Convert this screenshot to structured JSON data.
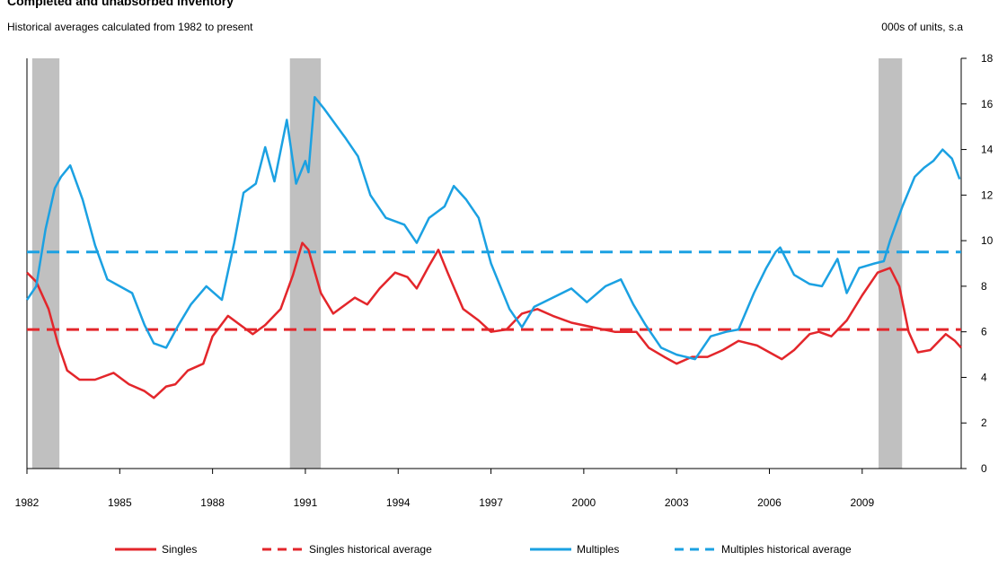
{
  "chart_data": {
    "type": "line",
    "title": "Completed and unabsorbed inventory",
    "subtitle": "Historical averages calculated from 1982 to present",
    "y_label": "000s of units, s.a",
    "xlim": [
      1982,
      2012.2
    ],
    "xticks": [
      1982,
      1985,
      1988,
      1991,
      1994,
      1997,
      2000,
      2003,
      2006,
      2009
    ],
    "ylim": [
      0,
      18
    ],
    "yticks": [
      0,
      2,
      4,
      6,
      8,
      10,
      12,
      14,
      16,
      18
    ],
    "recession_color": "#c0c0c0",
    "recessions": [
      [
        1982.17,
        1983.05
      ],
      [
        1990.5,
        1991.5
      ],
      [
        2009.53,
        2010.29
      ]
    ],
    "series": [
      {
        "name": "Singles",
        "color": "#e3262b",
        "x": [
          1982.0,
          1982.3,
          1982.7,
          1983.0,
          1983.3,
          1983.7,
          1984.2,
          1984.8,
          1985.3,
          1985.8,
          1986.1,
          1986.5,
          1986.8,
          1987.2,
          1987.7,
          1988.0,
          1988.5,
          1988.9,
          1989.3,
          1989.7,
          1990.2,
          1990.6,
          1990.9,
          1991.1,
          1991.5,
          1991.9,
          1992.3,
          1992.6,
          1993.0,
          1993.4,
          1993.9,
          1994.3,
          1994.6,
          1995.0,
          1995.3,
          1995.6,
          1996.1,
          1996.6,
          1997.0,
          1997.5,
          1998.0,
          1998.5,
          1999.0,
          1999.6,
          2000.3,
          2001.0,
          2001.7,
          2002.1,
          2002.6,
          2003.0,
          2003.5,
          2004.0,
          2004.5,
          2005.0,
          2005.6,
          2006.0,
          2006.4,
          2006.8,
          2007.3,
          2007.6,
          2008.0,
          2008.5,
          2009.0,
          2009.5,
          2009.9,
          2010.2,
          2010.5,
          2010.8,
          2011.2,
          2011.7,
          2012.0,
          2012.2
        ],
        "values": [
          8.6,
          8.2,
          7.0,
          5.5,
          4.3,
          3.9,
          3.9,
          4.2,
          3.7,
          3.4,
          3.1,
          3.6,
          3.7,
          4.3,
          4.6,
          5.8,
          6.7,
          6.3,
          5.9,
          6.3,
          7.0,
          8.5,
          9.9,
          9.6,
          7.7,
          6.8,
          7.2,
          7.5,
          7.2,
          7.9,
          8.6,
          8.4,
          7.9,
          8.9,
          9.6,
          8.6,
          7.0,
          6.5,
          6.0,
          6.1,
          6.8,
          7.0,
          6.7,
          6.4,
          6.2,
          6.0,
          6.0,
          5.3,
          4.9,
          4.6,
          4.9,
          4.9,
          5.2,
          5.6,
          5.4,
          5.1,
          4.8,
          5.2,
          5.9,
          6.0,
          5.8,
          6.5,
          7.6,
          8.6,
          8.8,
          8.0,
          6.0,
          5.1,
          5.2,
          5.9,
          5.6,
          5.3
        ]
      },
      {
        "name": "Multiples",
        "color": "#1ba1e2",
        "x": [
          1982.0,
          1982.3,
          1982.6,
          1982.9,
          1983.1,
          1983.4,
          1983.8,
          1984.2,
          1984.6,
          1985.0,
          1985.4,
          1985.8,
          1986.1,
          1986.5,
          1986.9,
          1987.3,
          1987.8,
          1988.3,
          1988.7,
          1989.0,
          1989.4,
          1989.7,
          1990.0,
          1990.4,
          1990.7,
          1991.0,
          1991.1,
          1991.3,
          1991.6,
          1992.3,
          1992.7,
          1993.1,
          1993.6,
          1994.2,
          1994.6,
          1995.0,
          1995.5,
          1995.8,
          1996.2,
          1996.6,
          1997.0,
          1997.6,
          1998.0,
          1998.4,
          1999.0,
          1999.6,
          2000.1,
          2000.7,
          2001.2,
          2001.6,
          2002.0,
          2002.5,
          2003.0,
          2003.6,
          2004.1,
          2004.6,
          2005.0,
          2005.5,
          2005.9,
          2006.2,
          2006.35,
          2006.8,
          2007.3,
          2007.7,
          2008.2,
          2008.5,
          2008.9,
          2009.4,
          2009.7,
          2009.9,
          2010.3,
          2010.7,
          2011.0,
          2011.3,
          2011.6,
          2011.9,
          2012.15
        ],
        "values": [
          7.4,
          8.0,
          10.5,
          12.3,
          12.8,
          13.3,
          11.8,
          9.8,
          8.3,
          8.0,
          7.7,
          6.3,
          5.5,
          5.3,
          6.3,
          7.2,
          8.0,
          7.4,
          9.9,
          12.1,
          12.5,
          14.1,
          12.6,
          15.3,
          12.5,
          13.5,
          13.0,
          16.3,
          15.8,
          14.5,
          13.7,
          12.0,
          11.0,
          10.7,
          9.9,
          11.0,
          11.5,
          12.4,
          11.8,
          11.0,
          9.0,
          7.0,
          6.2,
          7.1,
          7.5,
          7.9,
          7.3,
          8.0,
          8.3,
          7.2,
          6.3,
          5.3,
          5.0,
          4.8,
          5.8,
          6.0,
          6.1,
          7.7,
          8.8,
          9.5,
          9.7,
          8.5,
          8.1,
          8.0,
          9.2,
          7.7,
          8.8,
          9.0,
          9.1,
          10.0,
          11.5,
          12.8,
          13.2,
          13.5,
          14.0,
          13.6,
          12.7
        ]
      }
    ],
    "reference_lines": [
      {
        "name": "Singles historical average",
        "value": 6.1,
        "color": "#e3262b"
      },
      {
        "name": "Multiples historical average",
        "value": 9.5,
        "color": "#1ba1e2"
      }
    ]
  }
}
